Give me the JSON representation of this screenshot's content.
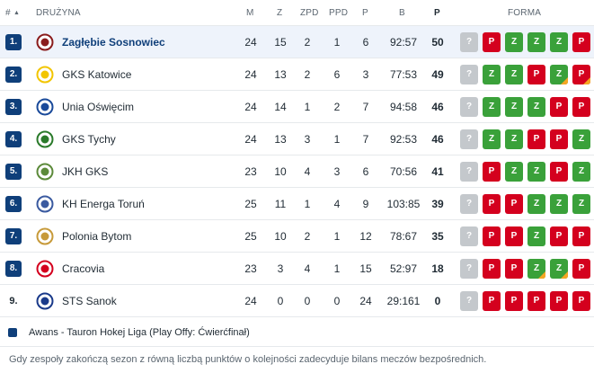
{
  "header": {
    "pos": "#",
    "sort_arrow": "▲",
    "team": "DRUŻYNA",
    "m": "M",
    "z": "Z",
    "zpd": "ZPD",
    "ppd": "PPD",
    "p": "P",
    "b": "B",
    "pts": "P",
    "form": "FORMA"
  },
  "rows": [
    {
      "pos": "1.",
      "team": "Zagłębie Sosnowiec",
      "m": "24",
      "z": "15",
      "zpd": "2",
      "ppd": "1",
      "p": "6",
      "b": "92:57",
      "pts": "50",
      "logo_color": "#8a1c1c",
      "form": [
        {
          "r": "?"
        },
        {
          "r": "P"
        },
        {
          "r": "Z"
        },
        {
          "r": "Z"
        },
        {
          "r": "Z"
        },
        {
          "r": "P"
        }
      ]
    },
    {
      "pos": "2.",
      "team": "GKS Katowice",
      "m": "24",
      "z": "13",
      "zpd": "2",
      "ppd": "6",
      "p": "3",
      "b": "77:53",
      "pts": "49",
      "logo_color": "#f2c500",
      "form": [
        {
          "r": "?"
        },
        {
          "r": "Z"
        },
        {
          "r": "Z"
        },
        {
          "r": "P"
        },
        {
          "r": "Z",
          "ot": true
        },
        {
          "r": "P",
          "ot": true
        }
      ]
    },
    {
      "pos": "3.",
      "team": "Unia Oświęcim",
      "m": "24",
      "z": "14",
      "zpd": "1",
      "ppd": "2",
      "p": "7",
      "b": "94:58",
      "pts": "46",
      "logo_color": "#1a4a9a",
      "form": [
        {
          "r": "?"
        },
        {
          "r": "Z"
        },
        {
          "r": "Z"
        },
        {
          "r": "Z"
        },
        {
          "r": "P"
        },
        {
          "r": "P"
        }
      ]
    },
    {
      "pos": "4.",
      "team": "GKS Tychy",
      "m": "24",
      "z": "13",
      "zpd": "3",
      "ppd": "1",
      "p": "7",
      "b": "92:53",
      "pts": "46",
      "logo_color": "#2a7a2a",
      "form": [
        {
          "r": "?"
        },
        {
          "r": "Z"
        },
        {
          "r": "Z"
        },
        {
          "r": "P"
        },
        {
          "r": "P"
        },
        {
          "r": "Z"
        }
      ]
    },
    {
      "pos": "5.",
      "team": "JKH GKS",
      "m": "23",
      "z": "10",
      "zpd": "4",
      "ppd": "3",
      "p": "6",
      "b": "70:56",
      "pts": "41",
      "logo_color": "#5c8a3a",
      "form": [
        {
          "r": "?"
        },
        {
          "r": "P"
        },
        {
          "r": "Z"
        },
        {
          "r": "Z"
        },
        {
          "r": "P"
        },
        {
          "r": "Z"
        }
      ]
    },
    {
      "pos": "6.",
      "team": "KH Energa Toruń",
      "m": "25",
      "z": "11",
      "zpd": "1",
      "ppd": "4",
      "p": "9",
      "b": "103:85",
      "pts": "39",
      "logo_color": "#3a5aa0",
      "form": [
        {
          "r": "?"
        },
        {
          "r": "P"
        },
        {
          "r": "P"
        },
        {
          "r": "Z"
        },
        {
          "r": "Z"
        },
        {
          "r": "Z"
        }
      ]
    },
    {
      "pos": "7.",
      "team": "Polonia Bytom",
      "m": "25",
      "z": "10",
      "zpd": "2",
      "ppd": "1",
      "p": "12",
      "b": "78:67",
      "pts": "35",
      "logo_color": "#c79a3a",
      "form": [
        {
          "r": "?"
        },
        {
          "r": "P"
        },
        {
          "r": "P"
        },
        {
          "r": "Z"
        },
        {
          "r": "P"
        },
        {
          "r": "P"
        }
      ]
    },
    {
      "pos": "8.",
      "team": "Cracovia",
      "m": "23",
      "z": "3",
      "zpd": "4",
      "ppd": "1",
      "p": "15",
      "b": "52:97",
      "pts": "18",
      "logo_color": "#d4001e",
      "form": [
        {
          "r": "?"
        },
        {
          "r": "P"
        },
        {
          "r": "P"
        },
        {
          "r": "Z",
          "ot": true
        },
        {
          "r": "Z",
          "ot": true
        },
        {
          "r": "P"
        }
      ]
    },
    {
      "pos": "9.",
      "team": "STS Sanok",
      "m": "24",
      "z": "0",
      "zpd": "0",
      "ppd": "0",
      "p": "24",
      "b": "29:161",
      "pts": "0",
      "logo_color": "#1a3a8a",
      "form": [
        {
          "r": "?"
        },
        {
          "r": "P"
        },
        {
          "r": "P"
        },
        {
          "r": "P"
        },
        {
          "r": "P"
        },
        {
          "r": "P"
        }
      ]
    }
  ],
  "legend": {
    "text": "Awans - Tauron Hokej Liga (Play Offy: Ćwierćfinał)",
    "color": "#0f3f7a"
  },
  "note": "Gdy zespoły zakończą sezon z równą liczbą punktów o kolejności zadecyduje bilans meczów bezpośrednich.",
  "colors": {
    "win": "#3aa13a",
    "loss": "#d4001e",
    "unknown": "#c4c8cc",
    "overtime": "#f5a623"
  }
}
